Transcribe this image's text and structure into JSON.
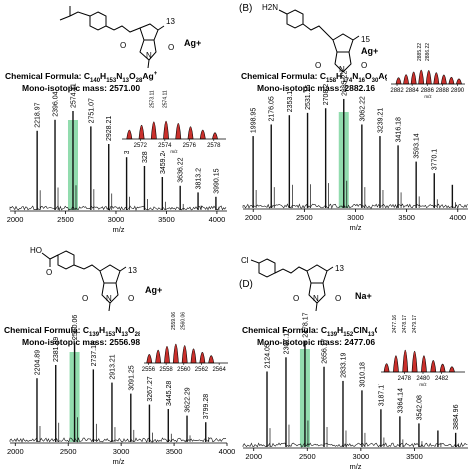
{
  "panels": [
    {
      "letter": "",
      "counter_ion": "Ag+",
      "repeat_count": "13",
      "formula_prefix": "Chemical Formula: ",
      "formula_parts": [
        [
          "C",
          ""
        ],
        [
          "140",
          "sub"
        ],
        [
          "H",
          ""
        ],
        [
          "153",
          "sub"
        ],
        [
          "N",
          ""
        ],
        [
          "13",
          "sub"
        ],
        [
          "O",
          ""
        ],
        [
          "28",
          "sub"
        ],
        [
          "Ag",
          ""
        ],
        [
          "+",
          "sup"
        ]
      ],
      "mass_text": "Mono-isotopic mass: 2571.00",
      "chart_data": {
        "type": "line",
        "xlabel": "m/z",
        "xlim": [
          1950,
          4100
        ],
        "xticks": [
          "2000",
          "2500",
          "3000",
          "3500",
          "4000"
        ],
        "highlight_peak": "2574.11",
        "peaks": [
          {
            "x": 2218.97,
            "label": "2218.97",
            "h": 0.72
          },
          {
            "x": 2396.04,
            "label": "2396.04",
            "h": 0.82
          },
          {
            "x": 2574.11,
            "label": "2574.11",
            "h": 0.9
          },
          {
            "x": 2751.07,
            "label": "2751.07",
            "h": 0.76
          },
          {
            "x": 2928.21,
            "label": "2928.21",
            "h": 0.6
          },
          {
            "x": 3105.23,
            "label": "3105.23",
            "h": 0.48
          },
          {
            "x": 3282.23,
            "label": "3282.23",
            "h": 0.4
          },
          {
            "x": 3459.24,
            "label": "3459.24",
            "h": 0.3
          },
          {
            "x": 3636.22,
            "label": "3636.22",
            "h": 0.22
          },
          {
            "x": 3813.2,
            "label": "3813.2",
            "h": 0.16
          },
          {
            "x": 3990.15,
            "label": "3990.15",
            "h": 0.12
          }
        ],
        "inset": {
          "xlabel": "m/z",
          "xlim": [
            2570.5,
            2579
          ],
          "xticks": [
            "2572",
            "2574",
            "2576",
            "2578"
          ],
          "top_labels": [
            "2573.11",
            "2574.11"
          ],
          "isotopes": [
            {
              "x": 2571.1,
              "h": 0.4
            },
            {
              "x": 2572.1,
              "h": 0.72
            },
            {
              "x": 2573.1,
              "h": 0.95
            },
            {
              "x": 2574.1,
              "h": 1.0
            },
            {
              "x": 2575.1,
              "h": 0.85
            },
            {
              "x": 2576.1,
              "h": 0.62
            },
            {
              "x": 2577.1,
              "h": 0.4
            },
            {
              "x": 2578.1,
              "h": 0.22
            }
          ]
        }
      }
    },
    {
      "letter": "(B)",
      "counter_ion": "Ag+",
      "repeat_count": "15",
      "amine_label": "H2N",
      "formula_prefix": "Chemical Formula: ",
      "formula_parts": [
        [
          "C",
          ""
        ],
        [
          "158",
          "sub"
        ],
        [
          "H",
          ""
        ],
        [
          "174",
          "sub"
        ],
        [
          "N",
          ""
        ],
        [
          "16",
          "sub"
        ],
        [
          "O",
          ""
        ],
        [
          "30",
          "sub"
        ],
        [
          "Ag",
          ""
        ],
        [
          "+",
          "sup"
        ]
      ],
      "mass_text": "Mono-isotopic mass: 2882.16",
      "chart_data": {
        "type": "line",
        "xlabel": "m/z",
        "xlim": [
          1900,
          4100
        ],
        "xticks": [
          "2000",
          "2500",
          "3000",
          "3500",
          "4000"
        ],
        "highlight_peak": "2885.22",
        "peaks": [
          {
            "x": 1998.95,
            "label": "1998.95",
            "h": 0.62
          },
          {
            "x": 2176.05,
            "label": "2176.05",
            "h": 0.72
          },
          {
            "x": 2353.1,
            "label": "2353.1",
            "h": 0.8
          },
          {
            "x": 2531.15,
            "label": "2531.15",
            "h": 0.82
          },
          {
            "x": 2708.2,
            "label": "2708.2",
            "h": 0.86
          },
          {
            "x": 2885.22,
            "label": "2885.22",
            "h": 0.94
          },
          {
            "x": 3062.22,
            "label": "3062.22",
            "h": 0.72
          },
          {
            "x": 3239.21,
            "label": "3239.21",
            "h": 0.62
          },
          {
            "x": 3416.18,
            "label": "3416.18",
            "h": 0.54
          },
          {
            "x": 3593.14,
            "label": "3593.14",
            "h": 0.4
          },
          {
            "x": 3770.1,
            "label": "3770.1",
            "h": 0.3
          },
          {
            "x": 3947.09,
            "label": "",
            "h": 0.2
          }
        ],
        "inset": {
          "xlabel": "m/z",
          "xlim": [
            2881.2,
            2891
          ],
          "xticks": [
            "2882",
            "2884",
            "2886",
            "2888",
            "2890"
          ],
          "top_labels": [
            "2885.22",
            "2886.22"
          ],
          "isotopes": [
            {
              "x": 2882.2,
              "h": 0.3
            },
            {
              "x": 2883.2,
              "h": 0.58
            },
            {
              "x": 2884.2,
              "h": 0.82
            },
            {
              "x": 2885.2,
              "h": 1.0
            },
            {
              "x": 2886.2,
              "h": 0.96
            },
            {
              "x": 2887.2,
              "h": 0.76
            },
            {
              "x": 2888.2,
              "h": 0.55
            },
            {
              "x": 2889.2,
              "h": 0.35
            },
            {
              "x": 2890.2,
              "h": 0.2
            }
          ]
        }
      }
    },
    {
      "letter": "",
      "counter_ion": "Ag+",
      "repeat_count": "13",
      "formula_prefix": "Chemical Formula: ",
      "formula_parts": [
        [
          "C",
          ""
        ],
        [
          "139",
          "sub"
        ],
        [
          "H",
          ""
        ],
        [
          "153",
          "sub"
        ],
        [
          "N",
          ""
        ],
        [
          "13",
          "sub"
        ],
        [
          "O",
          ""
        ],
        [
          "28",
          "sub"
        ],
        [
          "Ag",
          ""
        ],
        [
          "+",
          "sup"
        ]
      ],
      "mass_text": "Mono-isotopic mass: 2556.98",
      "chart_data": {
        "type": "line",
        "xlabel": "m/z",
        "xlim": [
          1950,
          4000
        ],
        "xticks": [
          "2000",
          "2500",
          "3000",
          "3500",
          "4000"
        ],
        "highlight_peak": "2560.06",
        "peaks": [
          {
            "x": 2204.89,
            "label": "2204.89",
            "h": 0.58
          },
          {
            "x": 2381.99,
            "label": "2381.99",
            "h": 0.7
          },
          {
            "x": 2560.06,
            "label": "2560.06",
            "h": 0.9
          },
          {
            "x": 2737.16,
            "label": "2737.16",
            "h": 0.66
          },
          {
            "x": 2913.21,
            "label": "2913.21",
            "h": 0.54
          },
          {
            "x": 3091.25,
            "label": "3091.25",
            "h": 0.44
          },
          {
            "x": 3267.27,
            "label": "3267.27",
            "h": 0.34
          },
          {
            "x": 3445.28,
            "label": "3445.28",
            "h": 0.3
          },
          {
            "x": 3622.29,
            "label": "3622.29",
            "h": 0.24
          },
          {
            "x": 3799.28,
            "label": "3799.28",
            "h": 0.18
          }
        ],
        "inset": {
          "xlabel": "",
          "xlim": [
            2555.5,
            2565
          ],
          "xticks": [
            "2556",
            "2558",
            "2560",
            "2562",
            "2564"
          ],
          "top_labels": [
            "2559.06",
            "2560.06"
          ],
          "isotopes": [
            {
              "x": 2556.1,
              "h": 0.35
            },
            {
              "x": 2557.1,
              "h": 0.62
            },
            {
              "x": 2558.1,
              "h": 0.86
            },
            {
              "x": 2559.1,
              "h": 1.0
            },
            {
              "x": 2560.1,
              "h": 0.9
            },
            {
              "x": 2561.1,
              "h": 0.7
            },
            {
              "x": 2562.1,
              "h": 0.48
            },
            {
              "x": 2563.1,
              "h": 0.28
            }
          ]
        }
      }
    },
    {
      "letter": "(D)",
      "counter_ion": "Na+",
      "repeat_count": "13",
      "chloro_label": "Cl",
      "formula_prefix": "Chemical Formula: ",
      "formula_parts": [
        [
          "C",
          ""
        ],
        [
          "139",
          "sub"
        ],
        [
          "H",
          ""
        ],
        [
          "152",
          "sub"
        ],
        [
          "ClN",
          ""
        ],
        [
          "13",
          "sub"
        ],
        [
          "O",
          ""
        ],
        [
          "26",
          "sub"
        ],
        [
          "Na",
          ""
        ],
        [
          "+",
          "sup"
        ]
      ],
      "mass_text": "Mono-isotopic mass: 2477.06",
      "chart_data": {
        "type": "line",
        "xlabel": "m/z",
        "xlim": [
          1900,
          4000
        ],
        "xticks": [
          "2000",
          "2500",
          "3000",
          "3500"
        ],
        "highlight_peak": "2478.17",
        "peaks": [
          {
            "x": 2124.05,
            "label": "2124.05",
            "h": 0.64
          },
          {
            "x": 2301.12,
            "label": "2301.12",
            "h": 0.76
          },
          {
            "x": 2478.17,
            "label": "2478.17",
            "h": 0.9
          },
          {
            "x": 2656.17,
            "label": "2656.17",
            "h": 0.68
          },
          {
            "x": 2833.19,
            "label": "2833.19",
            "h": 0.56
          },
          {
            "x": 3010.18,
            "label": "3010.18",
            "h": 0.48
          },
          {
            "x": 3187.17,
            "label": "3187.17",
            "h": 0.32
          },
          {
            "x": 3364.14,
            "label": "3364.14",
            "h": 0.26
          },
          {
            "x": 3542.08,
            "label": "3542.08",
            "h": 0.2
          },
          {
            "x": 3719.07,
            "label": "",
            "h": 0.14
          },
          {
            "x": 3884.96,
            "label": "3884.96",
            "h": 0.12
          }
        ],
        "inset": {
          "xlabel": "m/z",
          "xlim": [
            2475.5,
            2484.5
          ],
          "xticks": [
            "2478",
            "2480",
            "2482"
          ],
          "top_labels": [
            "2477.16",
            "2478.17",
            "2479.17"
          ],
          "isotopes": [
            {
              "x": 2476.1,
              "h": 0.28
            },
            {
              "x": 2477.1,
              "h": 0.7
            },
            {
              "x": 2478.1,
              "h": 1.0
            },
            {
              "x": 2479.1,
              "h": 0.94
            },
            {
              "x": 2480.1,
              "h": 0.7
            },
            {
              "x": 2481.1,
              "h": 0.45
            },
            {
              "x": 2482.1,
              "h": 0.26
            },
            {
              "x": 2483.1,
              "h": 0.12
            }
          ]
        }
      }
    }
  ],
  "colors": {
    "spectrum": "#111111",
    "highlight": "#7fd6a0",
    "inset_fill": "#c9302c",
    "inset_line": "#000000"
  }
}
